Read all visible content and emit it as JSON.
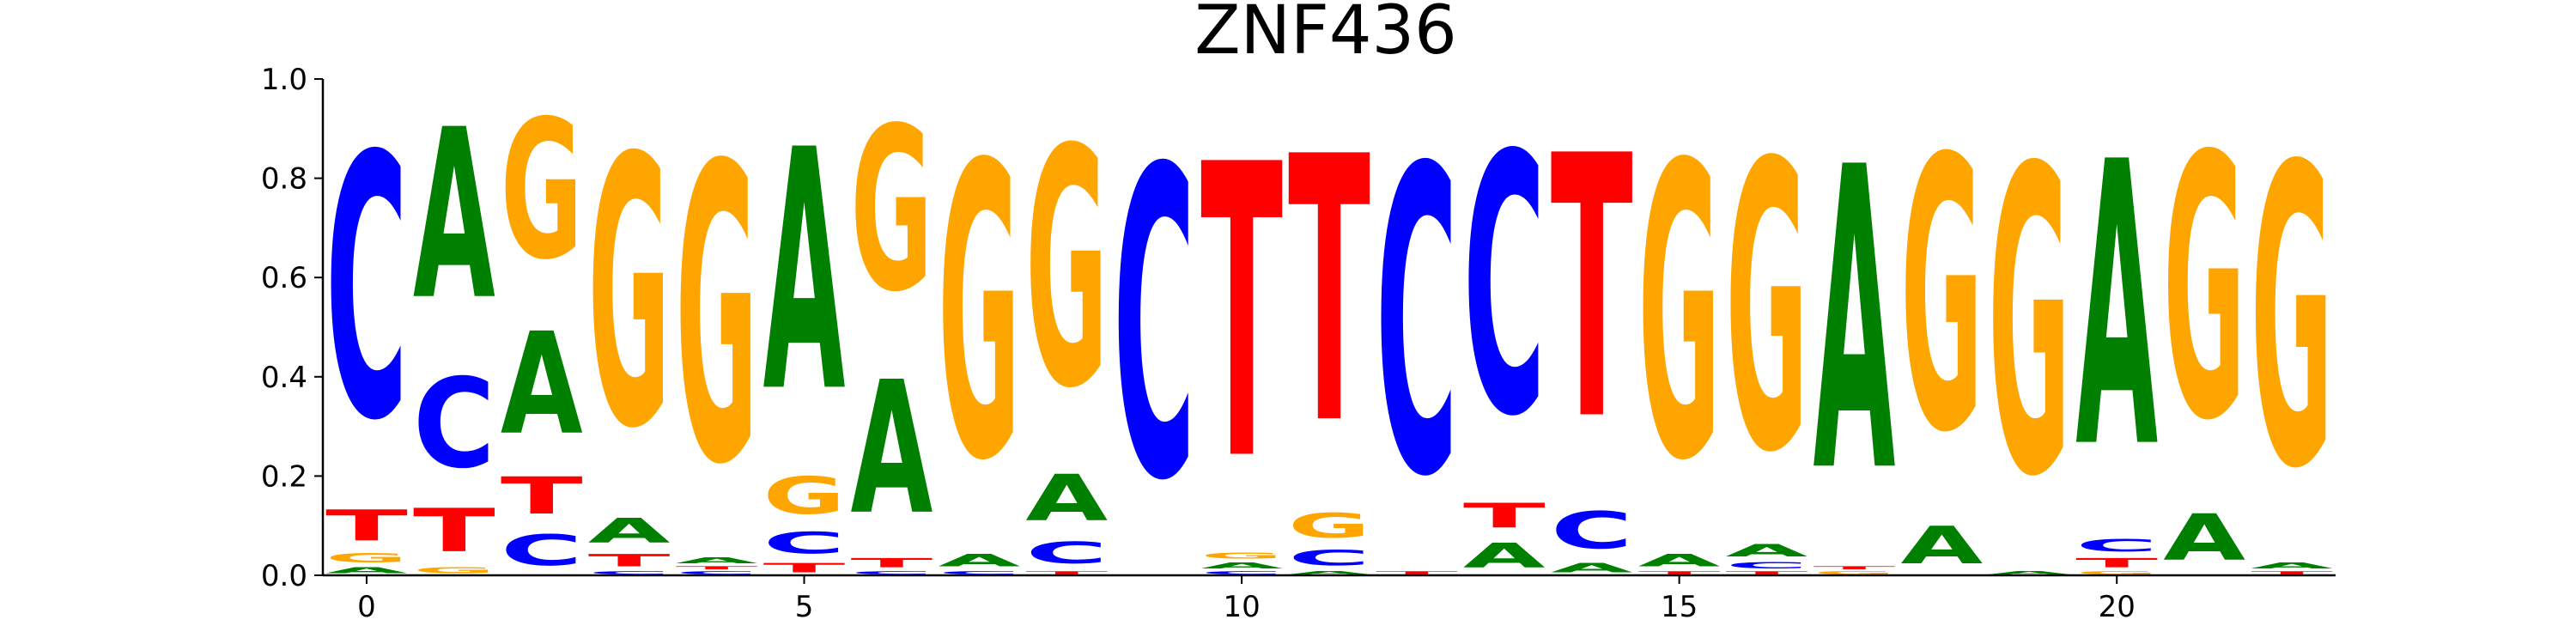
{
  "chart_data": {
    "type": "sequence-logo",
    "title": "ZNF436",
    "xlabel": "",
    "ylabel": "",
    "xlim": [
      -0.5,
      22.5
    ],
    "ylim": [
      0,
      1
    ],
    "x_ticks": [
      0,
      5,
      10,
      15,
      20
    ],
    "x_tick_labels": [
      "0",
      "5",
      "10",
      "15",
      "20"
    ],
    "y_ticks": [
      0,
      0.2,
      0.4,
      0.6,
      0.8,
      1.0
    ],
    "y_tick_labels": [
      "0.0",
      "0.2",
      "0.4",
      "0.6",
      "0.8",
      "1.0"
    ],
    "grid": false,
    "colors": {
      "A": "#008000",
      "C": "#0000ff",
      "G": "#ffa500",
      "T": "#ff0000"
    },
    "positions": [
      {
        "x": 0,
        "A": 0.02,
        "C": 0.85,
        "G": 0.03,
        "T": 0.1
      },
      {
        "x": 1,
        "A": 0.55,
        "C": 0.29,
        "G": 0.02,
        "T": 0.14
      },
      {
        "x": 2,
        "A": 0.33,
        "C": 0.1,
        "G": 0.45,
        "T": 0.12
      },
      {
        "x": 3,
        "A": 0.08,
        "C": 0.01,
        "G": 0.87,
        "T": 0.04
      },
      {
        "x": 4,
        "A": 0.02,
        "C": 0.01,
        "G": 0.96,
        "T": 0.01
      },
      {
        "x": 5,
        "A": 0.78,
        "C": 0.07,
        "G": 0.12,
        "T": 0.03
      },
      {
        "x": 6,
        "A": 0.43,
        "C": 0.01,
        "G": 0.53,
        "T": 0.03
      },
      {
        "x": 7,
        "A": 0.04,
        "C": 0.01,
        "G": 0.95,
        "T": 0.0
      },
      {
        "x": 8,
        "A": 0.15,
        "C": 0.07,
        "G": 0.77,
        "T": 0.01
      },
      {
        "x": 9,
        "A": 0.0,
        "C": 1.0,
        "G": 0.0,
        "T": 0.0
      },
      {
        "x": 10,
        "A": 0.02,
        "C": 0.01,
        "G": 0.02,
        "T": 0.95
      },
      {
        "x": 11,
        "A": 0.01,
        "C": 0.05,
        "G": 0.08,
        "T": 0.86
      },
      {
        "x": 12,
        "A": 0.0,
        "C": 0.99,
        "G": 0.0,
        "T": 0.01
      },
      {
        "x": 13,
        "A": 0.08,
        "C": 0.84,
        "G": 0.0,
        "T": 0.08
      },
      {
        "x": 14,
        "A": 0.03,
        "C": 0.12,
        "G": 0.0,
        "T": 0.85
      },
      {
        "x": 15,
        "A": 0.04,
        "C": 0.0,
        "G": 0.95,
        "T": 0.01
      },
      {
        "x": 16,
        "A": 0.04,
        "C": 0.02,
        "G": 0.93,
        "T": 0.01
      },
      {
        "x": 17,
        "A": 0.98,
        "C": 0.0,
        "G": 0.01,
        "T": 0.01
      },
      {
        "x": 18,
        "A": 0.12,
        "C": 0.0,
        "G": 0.88,
        "T": 0.0
      },
      {
        "x": 19,
        "A": 0.01,
        "C": 0.0,
        "G": 0.99,
        "T": 0.0
      },
      {
        "x": 20,
        "A": 0.92,
        "C": 0.04,
        "G": 0.01,
        "T": 0.03
      },
      {
        "x": 21,
        "A": 0.15,
        "C": 0.0,
        "G": 0.85,
        "T": 0.0
      },
      {
        "x": 22,
        "A": 0.02,
        "C": 0.0,
        "G": 0.97,
        "T": 0.01
      }
    ]
  }
}
